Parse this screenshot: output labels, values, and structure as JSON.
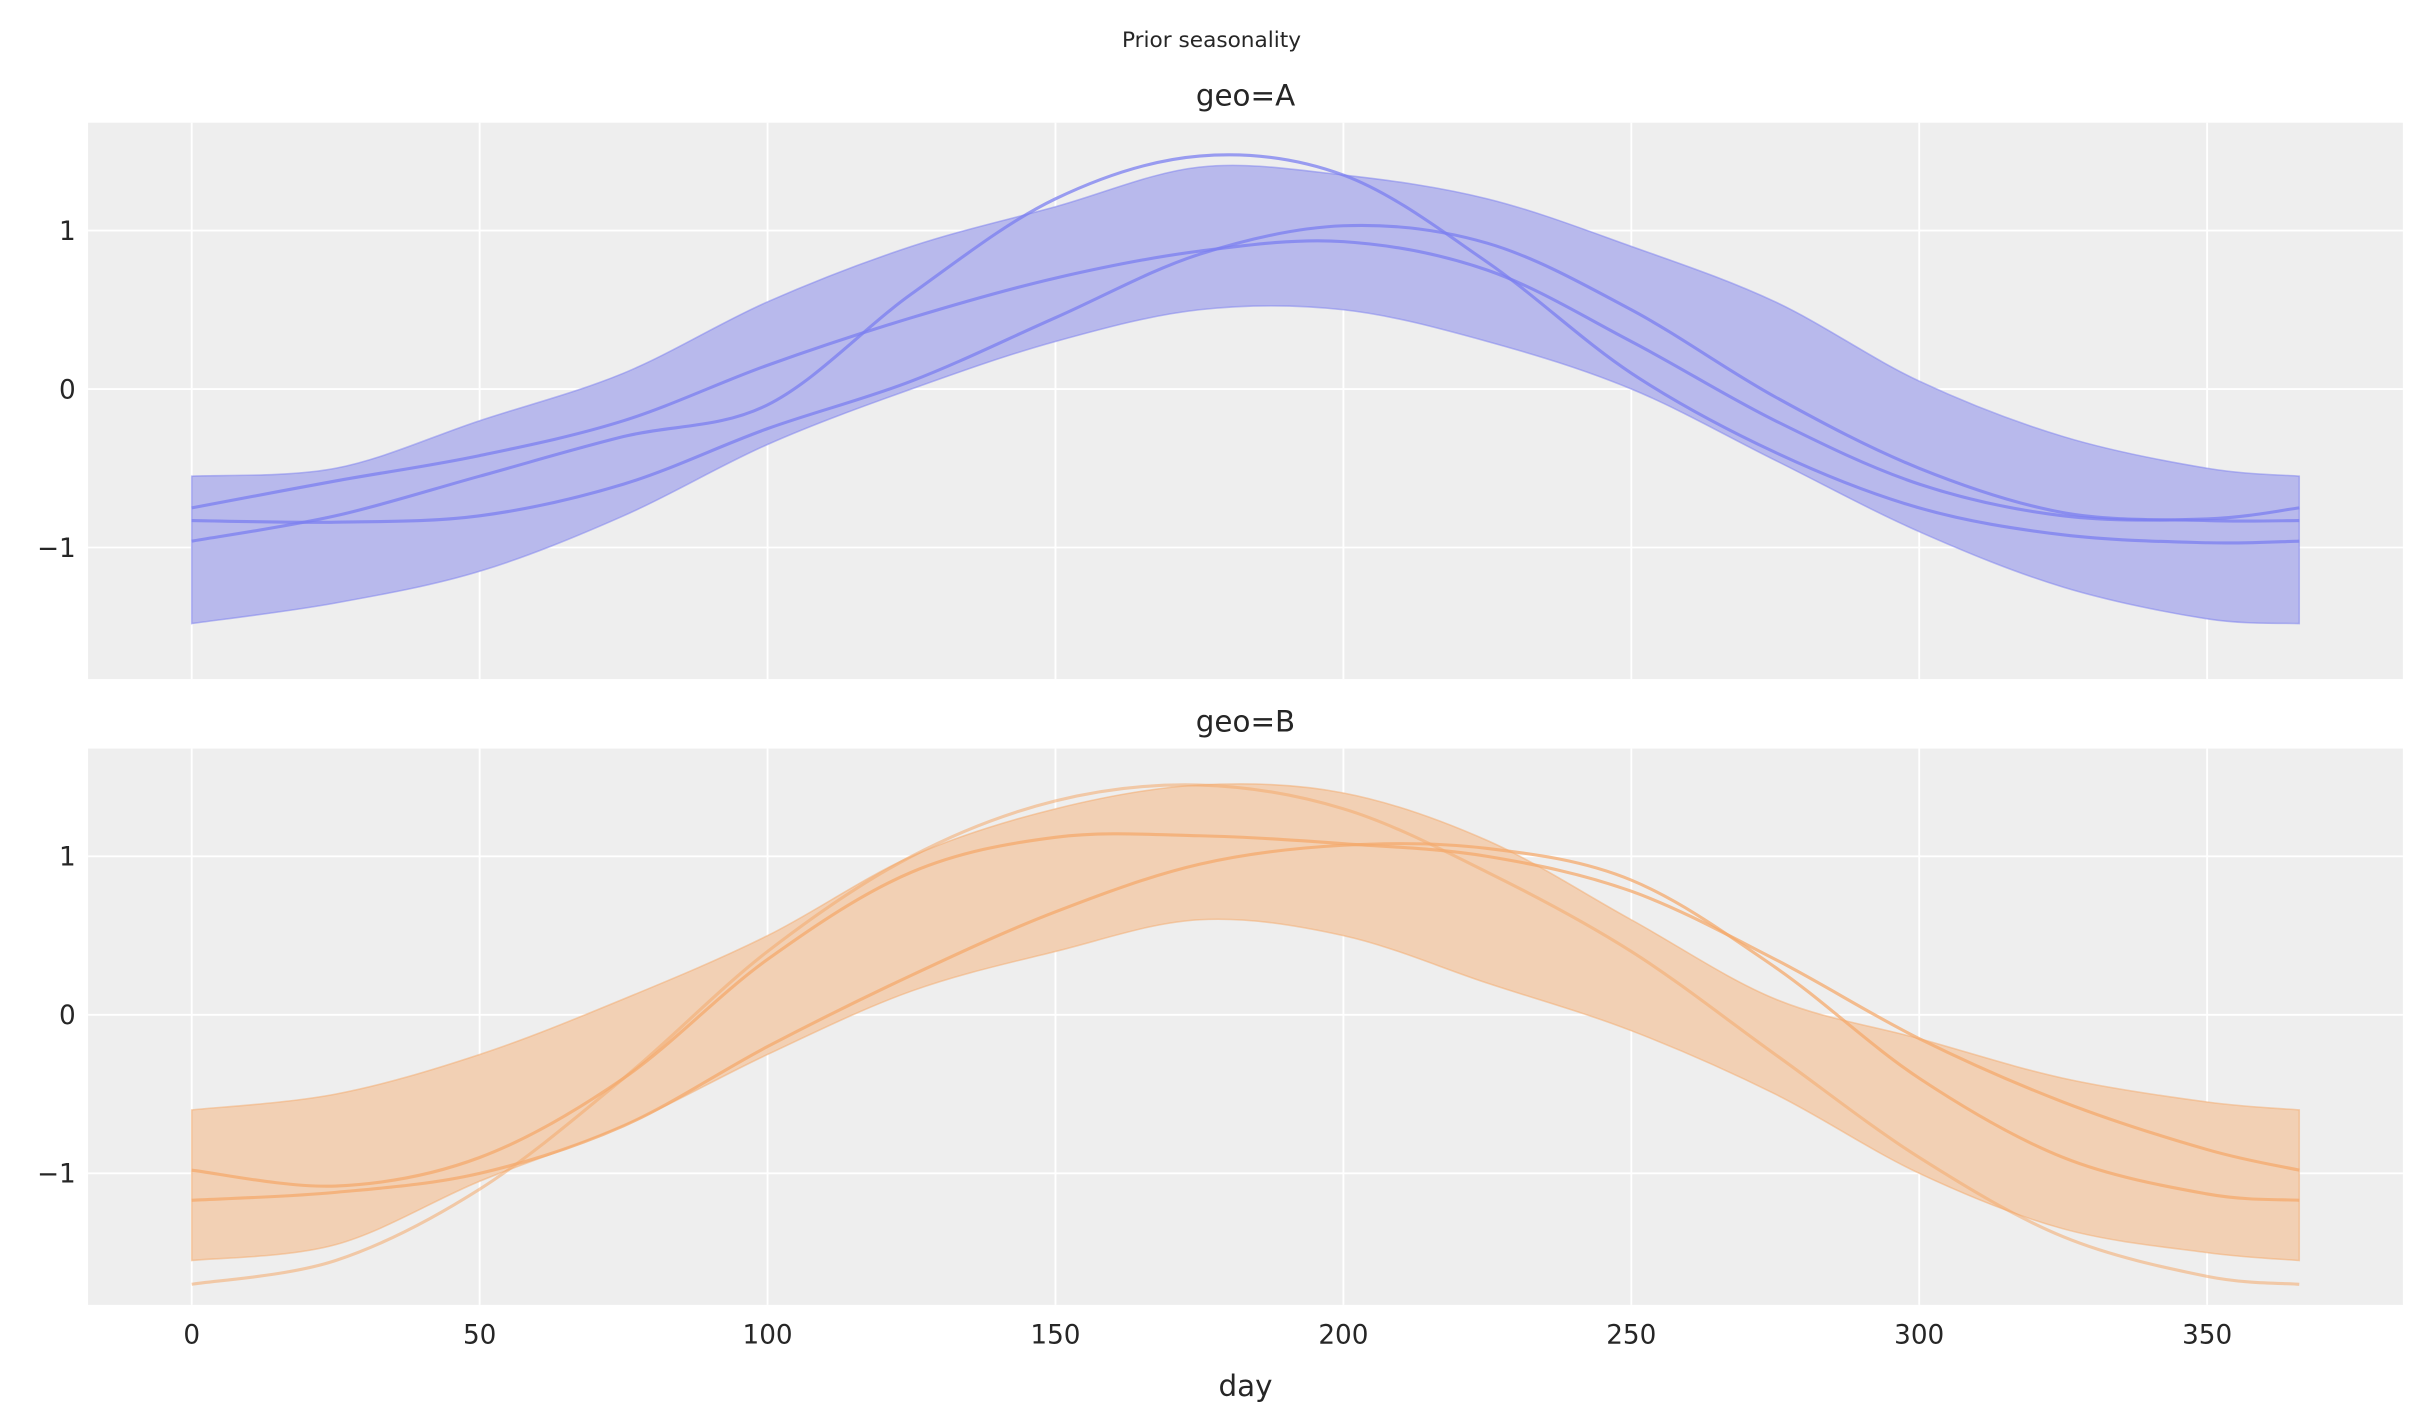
{
  "suptitle": "Prior seasonality",
  "chart_data": [
    {
      "type": "line",
      "title": "geo=A",
      "xlabel": "",
      "ylabel": "",
      "xlim": [
        -18,
        384
      ],
      "ylim": [
        -1.83,
        1.68
      ],
      "xticks": [
        "0",
        "50",
        "100",
        "150",
        "200",
        "250",
        "300",
        "350"
      ],
      "yticks": [
        "1",
        "0",
        "−1"
      ],
      "ytick_values": [
        1,
        0,
        -1
      ],
      "xtick_values": [
        0,
        50,
        100,
        150,
        200,
        250,
        300,
        350
      ],
      "grid": true,
      "color": "#7b7ff0",
      "band_color": "#b8b9ec",
      "x": [
        0,
        25,
        50,
        75,
        100,
        125,
        150,
        175,
        200,
        225,
        250,
        275,
        300,
        325,
        350,
        366
      ],
      "band_upper": [
        -0.55,
        -0.5,
        -0.2,
        0.1,
        0.55,
        0.9,
        1.15,
        1.4,
        1.35,
        1.2,
        0.9,
        0.55,
        0.05,
        -0.3,
        -0.5,
        -0.55
      ],
      "band_lower": [
        -1.48,
        -1.35,
        -1.15,
        -0.8,
        -0.35,
        0.0,
        0.3,
        0.5,
        0.5,
        0.3,
        0.0,
        -0.45,
        -0.9,
        -1.25,
        -1.45,
        -1.48
      ],
      "series": [
        {
          "values": [
            -0.75,
            -0.58,
            -0.42,
            -0.2,
            0.15,
            0.45,
            0.7,
            0.87,
            0.93,
            0.75,
            0.3,
            -0.2,
            -0.6,
            -0.8,
            -0.82,
            -0.75
          ]
        },
        {
          "values": [
            -0.83,
            -0.84,
            -0.8,
            -0.6,
            -0.25,
            0.05,
            0.45,
            0.85,
            1.03,
            0.92,
            0.5,
            -0.05,
            -0.5,
            -0.78,
            -0.83,
            -0.83
          ]
        },
        {
          "values": [
            -0.96,
            -0.8,
            -0.55,
            -0.3,
            -0.1,
            0.6,
            1.2,
            1.47,
            1.35,
            0.8,
            0.1,
            -0.4,
            -0.75,
            -0.92,
            -0.97,
            -0.96
          ]
        }
      ]
    },
    {
      "type": "line",
      "title": "geo=B",
      "xlabel": "day",
      "ylabel": "",
      "xlim": [
        -18,
        384
      ],
      "ylim": [
        -1.83,
        1.68
      ],
      "xticks": [
        "0",
        "50",
        "100",
        "150",
        "200",
        "250",
        "300",
        "350"
      ],
      "yticks": [
        "1",
        "0",
        "−1"
      ],
      "ytick_values": [
        1,
        0,
        -1
      ],
      "xtick_values": [
        0,
        50,
        100,
        150,
        200,
        250,
        300,
        350
      ],
      "grid": true,
      "color": "#f4a96c",
      "band_color": "#f2d0b4",
      "x": [
        0,
        25,
        50,
        75,
        100,
        125,
        150,
        175,
        200,
        225,
        250,
        275,
        300,
        325,
        350,
        366
      ],
      "band_upper": [
        -0.6,
        -0.5,
        -0.25,
        0.1,
        0.5,
        1.0,
        1.3,
        1.45,
        1.4,
        1.1,
        0.6,
        0.1,
        -0.15,
        -0.4,
        -0.55,
        -0.6
      ],
      "band_lower": [
        -1.55,
        -1.45,
        -1.05,
        -0.7,
        -0.25,
        0.15,
        0.4,
        0.6,
        0.5,
        0.2,
        -0.1,
        -0.5,
        -1.0,
        -1.35,
        -1.5,
        -1.55
      ],
      "series": [
        {
          "values": [
            -0.98,
            -1.08,
            -0.9,
            -0.4,
            0.35,
            0.9,
            1.12,
            1.13,
            1.08,
            1.0,
            0.78,
            0.35,
            -0.15,
            -0.55,
            -0.85,
            -0.98
          ]
        },
        {
          "values": [
            -1.17,
            -1.12,
            -1.0,
            -0.7,
            -0.2,
            0.25,
            0.65,
            0.95,
            1.07,
            1.05,
            0.85,
            0.3,
            -0.4,
            -0.9,
            -1.13,
            -1.17
          ]
        },
        {
          "values": [
            -1.7,
            -1.55,
            -1.1,
            -0.4,
            0.4,
            1.0,
            1.35,
            1.45,
            1.3,
            0.9,
            0.4,
            -0.25,
            -0.9,
            -1.4,
            -1.65,
            -1.7
          ]
        }
      ]
    }
  ]
}
